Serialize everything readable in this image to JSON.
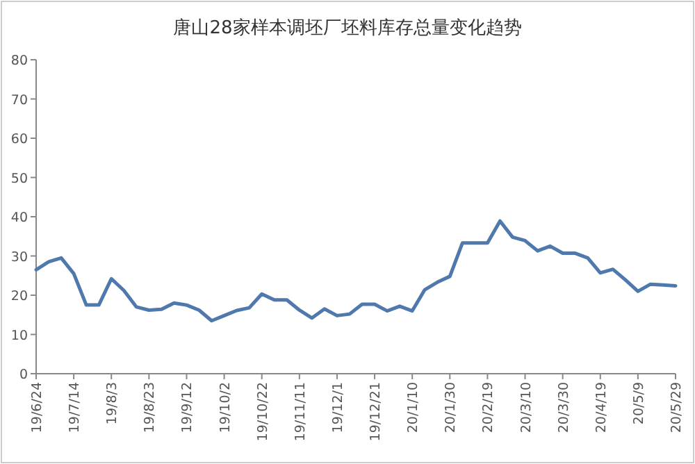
{
  "chart_data": {
    "type": "line",
    "title": "唐山28家样本调坯厂坯料库存总量变化趋势",
    "categories": [
      "19/6/24",
      null,
      null,
      "19/7/14",
      null,
      null,
      "19/8/3",
      null,
      null,
      "19/8/23",
      null,
      null,
      "19/9/12",
      null,
      null,
      "19/10/2",
      null,
      null,
      "19/10/22",
      null,
      null,
      "19/11/11",
      null,
      null,
      "19/12/1",
      null,
      null,
      "19/12/21",
      null,
      null,
      "20/1/10",
      null,
      null,
      "20/1/30",
      null,
      null,
      "20/2/19",
      null,
      null,
      "20/3/10",
      null,
      null,
      "20/3/30",
      null,
      null,
      "20/4/19",
      null,
      null,
      "20/5/9",
      null,
      null,
      "20/5/29"
    ],
    "series": [
      {
        "color": "#4f79ad",
        "values": [
          26.5,
          28.5,
          29.5,
          25.5,
          17.5,
          17.5,
          24.2,
          21.2,
          17,
          16.2,
          16.4,
          18,
          17.5,
          16.2,
          13.5,
          14.8,
          16.1,
          16.8,
          20.3,
          18.8,
          18.8,
          16.2,
          14.2,
          16.5,
          14.8,
          15.2,
          17.7,
          17.7,
          16,
          17.2,
          16,
          21.4,
          23.3,
          24.8,
          33.3,
          33.3,
          33.3,
          38.9,
          34.8,
          33.9,
          31.3,
          32.5,
          30.7,
          30.7,
          29.5,
          25.7,
          26.6,
          23.9,
          21,
          22.8,
          22.6,
          22.4
        ]
      }
    ],
    "ylim": [
      0,
      80
    ],
    "yticks": [
      0,
      10,
      20,
      30,
      40,
      50,
      60,
      70,
      80
    ],
    "marker": "none",
    "line_style": "solid"
  }
}
